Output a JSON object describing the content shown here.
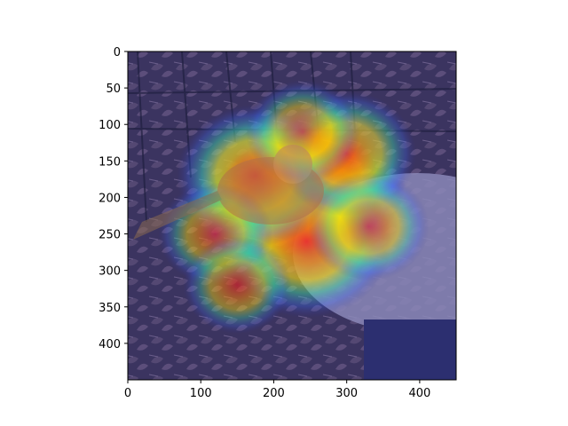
{
  "chart_data": {
    "type": "heatmap",
    "title": "",
    "xlabel": "",
    "ylabel": "",
    "xlim": [
      0,
      450
    ],
    "ylim": [
      450,
      0
    ],
    "y_inverted": true,
    "grid": false,
    "legend": "none",
    "x_ticks": [
      0,
      100,
      200,
      300,
      400
    ],
    "x_tick_labels": [
      "0",
      "100",
      "200",
      "300",
      "400"
    ],
    "y_ticks": [
      0,
      50,
      100,
      150,
      200,
      250,
      300,
      350,
      400
    ],
    "y_tick_labels": [
      "0",
      "50",
      "100",
      "150",
      "200",
      "250",
      "300",
      "350",
      "400"
    ],
    "image": {
      "description_tags": [
        "bird",
        "fallen-leaves",
        "wire-fence",
        "bird-bath"
      ],
      "colormap": "jet",
      "overlay_alpha": 0.5
    },
    "heat_spots": [
      {
        "x": 215,
        "y": 200,
        "intensity": 1.0
      },
      {
        "x": 260,
        "y": 175,
        "intensity": 0.85
      },
      {
        "x": 245,
        "y": 260,
        "intensity": 0.8
      },
      {
        "x": 175,
        "y": 170,
        "intensity": 0.7
      },
      {
        "x": 300,
        "y": 140,
        "intensity": 0.55
      },
      {
        "x": 120,
        "y": 250,
        "intensity": 0.35
      },
      {
        "x": 150,
        "y": 320,
        "intensity": 0.3
      },
      {
        "x": 240,
        "y": 110,
        "intensity": 0.35
      },
      {
        "x": 330,
        "y": 240,
        "intensity": 0.4
      }
    ],
    "colors": {
      "background_tint": "#2a2560",
      "hot": "#ff2020",
      "warm": "#ffd000",
      "mid": "#40e0a0",
      "cool": "#3060ff"
    }
  }
}
